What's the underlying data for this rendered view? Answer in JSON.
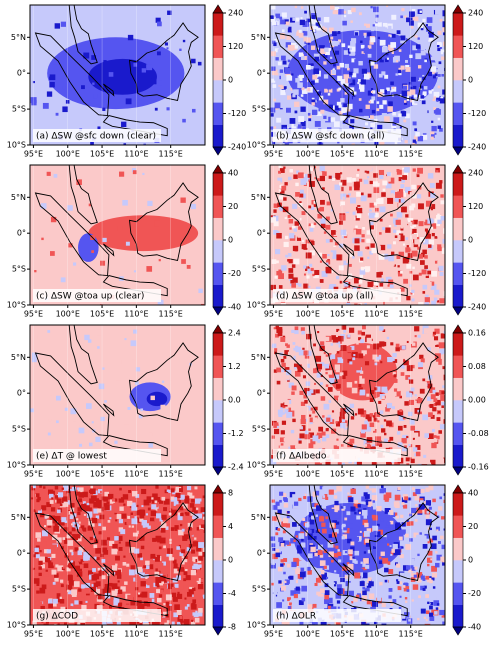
{
  "lat_range": [
    -10,
    9.5
  ],
  "lon_range": [
    94.5,
    120
  ],
  "lat_ticks": [
    {
      "value": 5,
      "label": "5°N"
    },
    {
      "value": 0,
      "label": "0°"
    },
    {
      "value": -5,
      "label": "5°S"
    },
    {
      "value": -10,
      "label": "10°S"
    }
  ],
  "lon_ticks": [
    {
      "value": 95,
      "label": "95°E"
    },
    {
      "value": 100,
      "label": "100°E"
    },
    {
      "value": 105,
      "label": "105°E"
    },
    {
      "value": 110,
      "label": "110°E"
    },
    {
      "value": 115,
      "label": "115°E"
    }
  ],
  "panels": [
    {
      "label": "(a) ΔSW @sfc down (clear)",
      "clim": [
        -240,
        240
      ],
      "cbar_ticks": [
        240,
        120,
        0,
        -120,
        -240
      ]
    },
    {
      "label": "(b) ΔSW @sfc down (all)",
      "clim": [
        -240,
        240
      ],
      "cbar_ticks": [
        240,
        120,
        0,
        -120,
        -240
      ]
    },
    {
      "label": "(c) ΔSW @toa up (clear)",
      "clim": [
        -40,
        40
      ],
      "cbar_ticks": [
        40,
        20,
        0,
        -20,
        -40
      ]
    },
    {
      "label": "(d) ΔSW @toa up (all)",
      "clim": [
        -240,
        240
      ],
      "cbar_ticks": [
        240,
        120,
        0,
        -120,
        -240
      ]
    },
    {
      "label": "(e) ΔT @ lowest",
      "clim": [
        -2.4,
        2.4
      ],
      "cbar_ticks": [
        2.4,
        1.2,
        {
          "value": 0,
          "label": "0.0"
        },
        -1.2,
        -2.4
      ]
    },
    {
      "label": "(f) ΔAlbedo",
      "clim": [
        -0.16,
        0.16
      ],
      "cbar_ticks": [
        0.16,
        0.08,
        {
          "value": 0,
          "label": "0.00"
        },
        -0.08,
        -0.16
      ]
    },
    {
      "label": "(g) ΔCOD",
      "clim": [
        -8,
        8
      ],
      "cbar_ticks": [
        8,
        4,
        0,
        -4,
        -8
      ]
    },
    {
      "label": "(h) ΔOLR",
      "clim": [
        -40,
        40
      ],
      "cbar_ticks": [
        40,
        20,
        0,
        -20,
        -40
      ]
    }
  ]
}
